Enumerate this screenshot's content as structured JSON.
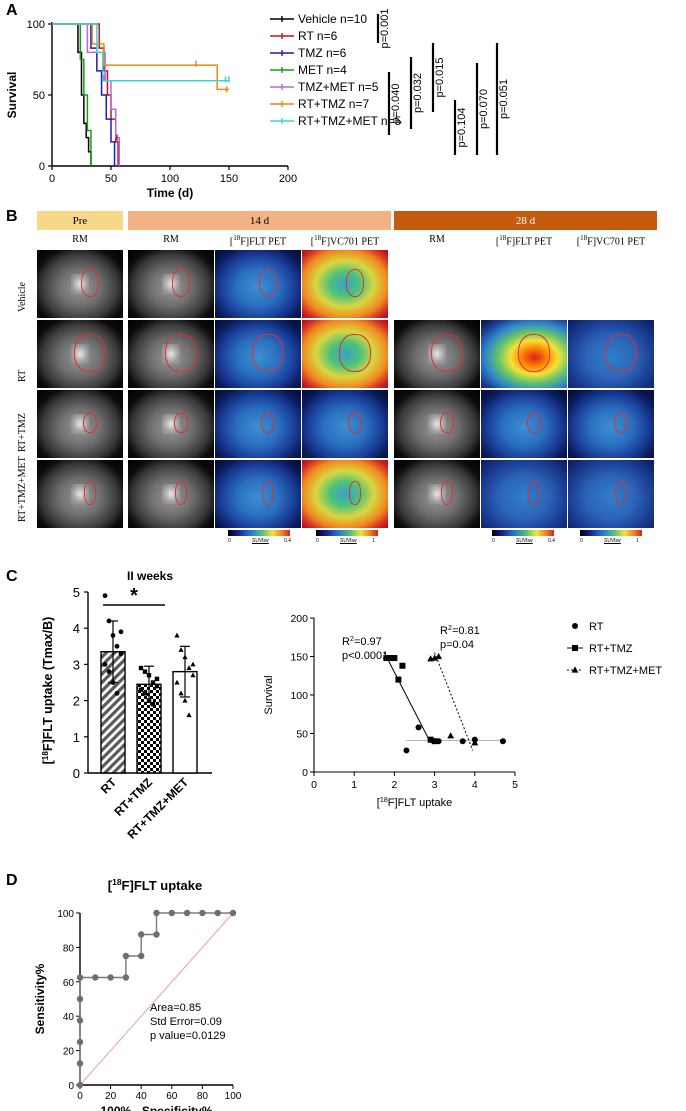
{
  "panel_letters": {
    "a": "A",
    "b": "B",
    "c": "C",
    "d": "D"
  },
  "panelA": {
    "ylabel": "Survival",
    "xlabel": "Time (d)",
    "xticks": [
      "0",
      "50",
      "100",
      "150",
      "200"
    ],
    "yticks": [
      "0",
      "50",
      "100"
    ],
    "legend": [
      {
        "label": "Vehicle n=10",
        "color": "#000000"
      },
      {
        "label": "RT n=6",
        "color": "#c0141c"
      },
      {
        "label": "TMZ n=6",
        "color": "#1c1cb4"
      },
      {
        "label": "MET n=4",
        "color": "#1a9a1a"
      },
      {
        "label": "TMZ+MET n=5",
        "color": "#b56ad8"
      },
      {
        "label": "RT+TMZ n=7",
        "color": "#e88a14"
      },
      {
        "label": "RT+TMZ+MET n=5",
        "color": "#3fd6d0"
      }
    ],
    "pvalues": [
      "p=0.001",
      "p=0.040",
      "p=0.032",
      "p=0.015",
      "p=0.104",
      "p=0.070",
      "p=0.051"
    ]
  },
  "panelB": {
    "headers": {
      "pre": "Pre",
      "d14": "14 d",
      "d28": "28 d"
    },
    "columns": [
      "RM",
      "RM",
      "[18F]FLT PET",
      "[18F]VC701 PET",
      "RM",
      "[18F]FLT PET",
      "[18F]VC701 PET"
    ],
    "rows": [
      "Vehicle",
      "RT",
      "RT+TMZ",
      "RT+TMZ+MET"
    ],
    "colorbars": [
      {
        "min": "0",
        "unit": "SUVbw",
        "max": "0.4"
      },
      {
        "min": "0",
        "unit": "SUVbw",
        "max": "1"
      },
      {
        "min": "0",
        "unit": "SUVbw",
        "max": "0.4"
      },
      {
        "min": "0",
        "unit": "SUVbw",
        "max": "1"
      }
    ]
  },
  "panelC": {
    "subtitle": "II weeks",
    "star": "*",
    "bar_ylabel": "[18F]FLT uptake (Tmax/B)",
    "bar_yticks": [
      "0",
      "1",
      "2",
      "3",
      "4",
      "5"
    ],
    "scatter_ylabel": "Survival",
    "scatter_xlabel": "[18F]FLT uptake",
    "scatter_xticks": [
      "0",
      "1",
      "2",
      "3",
      "4",
      "5"
    ],
    "scatter_yticks": [
      "0",
      "50",
      "100",
      "150",
      "200"
    ],
    "scatter_legend": [
      "RT",
      "RT+TMZ",
      "RT+TMZ+MET"
    ],
    "annot1": {
      "r2": "R2=0.97",
      "p": "p<0.0001"
    },
    "annot2": {
      "r2": "R2=0.81",
      "p": "p=0.04"
    }
  },
  "panelD": {
    "title": "[18F]FLT uptake",
    "ylabel": "Sensitivity%",
    "xlabel": "100% - Specificity%",
    "ticks": [
      "0",
      "20",
      "40",
      "60",
      "80",
      "100"
    ],
    "area": "Area=0.85",
    "stderr": "Std Error=0.09",
    "pvalue": "p value=0.0129"
  },
  "chart_data": [
    {
      "type": "line",
      "id": "kaplan-meier",
      "xlabel": "Time (d)",
      "ylabel": "Survival",
      "xlim": [
        0,
        200
      ],
      "ylim": [
        0,
        100
      ],
      "series": [
        {
          "name": "Vehicle n=10",
          "color": "#000000",
          "x": [
            0,
            22,
            25,
            27,
            29,
            31,
            33
          ],
          "y": [
            100,
            80,
            50,
            30,
            20,
            10,
            0
          ]
        },
        {
          "name": "RT n=6",
          "color": "#c0141c",
          "x": [
            0,
            40,
            44,
            47,
            50,
            54,
            56
          ],
          "y": [
            100,
            83,
            67,
            50,
            33,
            17,
            0
          ]
        },
        {
          "name": "TMZ n=6",
          "color": "#1c1cb4",
          "x": [
            0,
            33,
            38,
            42,
            46,
            50,
            53
          ],
          "y": [
            100,
            83,
            67,
            50,
            33,
            17,
            0
          ]
        },
        {
          "name": "MET n=4",
          "color": "#1a9a1a",
          "x": [
            0,
            24,
            27,
            30,
            33
          ],
          "y": [
            100,
            75,
            50,
            25,
            0
          ]
        },
        {
          "name": "TMZ+MET n=5",
          "color": "#b56ad8",
          "x": [
            0,
            30,
            45,
            50,
            54,
            57
          ],
          "y": [
            100,
            80,
            60,
            40,
            20,
            0
          ]
        },
        {
          "name": "RT+TMZ n=7",
          "color": "#e88a14",
          "x": [
            0,
            34,
            44,
            140,
            150
          ],
          "y": [
            100,
            86,
            71,
            54,
            54
          ]
        },
        {
          "name": "RT+TMZ+MET n=5",
          "color": "#3fd6d0",
          "x": [
            0,
            38,
            43,
            150
          ],
          "y": [
            100,
            80,
            60,
            60
          ]
        }
      ]
    },
    {
      "type": "bar",
      "id": "flt-uptake-bars",
      "categories": [
        "RT",
        "RT+TMZ",
        "RT+TMZ+MET"
      ],
      "values": [
        3.35,
        2.45,
        2.8
      ],
      "errors": [
        0.85,
        0.5,
        0.7
      ],
      "ylim": [
        0,
        5
      ],
      "ylabel": "[18F]FLT uptake (Tmax/B)",
      "points": [
        [
          4.9,
          4.2,
          3.8,
          3.5,
          3.3,
          3.0,
          2.8,
          2.5,
          2.2,
          3.9
        ],
        [
          2.9,
          2.8,
          2.7,
          2.5,
          2.4,
          2.3,
          2.2,
          2.0,
          1.9,
          2.6
        ],
        [
          3.8,
          3.4,
          3.2,
          2.9,
          2.7,
          2.5,
          2.2,
          2.0,
          1.6,
          3.0
        ]
      ]
    },
    {
      "type": "scatter",
      "id": "survival-vs-flt",
      "xlabel": "[18F]FLT uptake",
      "ylabel": "Survival",
      "xlim": [
        0,
        5
      ],
      "ylim": [
        0,
        200
      ],
      "series": [
        {
          "name": "RT",
          "marker": "circle",
          "x": [
            2.3,
            2.6,
            3.1,
            3.7,
            4.0,
            4.7
          ],
          "y": [
            28,
            58,
            40,
            40,
            42,
            40
          ]
        },
        {
          "name": "RT+TMZ",
          "marker": "square",
          "x": [
            1.8,
            1.9,
            2.0,
            2.1,
            2.2,
            2.9,
            3.0
          ],
          "y": [
            148,
            148,
            148,
            120,
            138,
            42,
            40
          ]
        },
        {
          "name": "RT+TMZ+MET",
          "marker": "triangle",
          "x": [
            2.9,
            3.0,
            3.1,
            3.4,
            4.0
          ],
          "y": [
            147,
            148,
            150,
            47,
            38
          ]
        }
      ]
    },
    {
      "type": "line",
      "id": "roc-curve",
      "xlabel": "100% - Specificity%",
      "ylabel": "Sensitivity%",
      "xlim": [
        0,
        100
      ],
      "ylim": [
        0,
        100
      ],
      "x": [
        0,
        0,
        0,
        0,
        0,
        0,
        10,
        20,
        30,
        30,
        40,
        40,
        50,
        50,
        60,
        70,
        80,
        90,
        100
      ],
      "y": [
        0,
        12.5,
        25,
        37.5,
        50,
        62.5,
        62.5,
        62.5,
        62.5,
        75,
        75,
        87.5,
        87.5,
        100,
        100,
        100,
        100,
        100,
        100
      ]
    }
  ]
}
